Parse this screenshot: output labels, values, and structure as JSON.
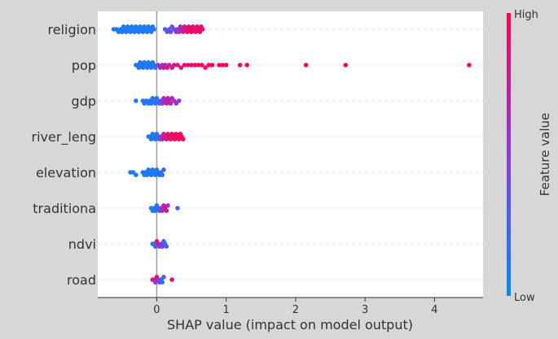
{
  "chart_data": {
    "type": "scatter",
    "subtype": "shap-beeswarm",
    "xlabel": "SHAP value (impact on model output)",
    "xlim": [
      -0.85,
      4.7
    ],
    "x_ticks": [
      0,
      1,
      2,
      3,
      4
    ],
    "zero_line": 0,
    "features": [
      "religion",
      "pop",
      "gdp",
      "river_leng",
      "elevation",
      "traditiona",
      "ndvi",
      "road"
    ],
    "colorbar": {
      "label": "Feature value",
      "high_label": "High",
      "low_label": "Low",
      "low_color": "#008afb",
      "high_color": "#ff0052"
    },
    "series": [
      {
        "name": "religion",
        "points": [
          [
            -0.62,
            0.15
          ],
          [
            -0.58,
            0.1
          ],
          [
            -0.55,
            0.12
          ],
          [
            -0.52,
            0.1
          ],
          [
            -0.5,
            0.12
          ],
          [
            -0.48,
            0.1
          ],
          [
            -0.46,
            0.15
          ],
          [
            -0.44,
            0.12
          ],
          [
            -0.42,
            0.1
          ],
          [
            -0.4,
            0.08
          ],
          [
            -0.38,
            0.1
          ],
          [
            -0.36,
            0.12
          ],
          [
            -0.34,
            0.1
          ],
          [
            -0.32,
            0.15
          ],
          [
            -0.3,
            0.1
          ],
          [
            -0.28,
            0.08
          ],
          [
            -0.26,
            0.1
          ],
          [
            -0.24,
            0.12
          ],
          [
            -0.22,
            0.1
          ],
          [
            -0.2,
            0.15
          ],
          [
            -0.18,
            0.12
          ],
          [
            -0.16,
            0.1
          ],
          [
            -0.14,
            0.08
          ],
          [
            -0.12,
            0.1
          ],
          [
            -0.1,
            0.12
          ],
          [
            -0.08,
            0.1
          ],
          [
            -0.06,
            0.15
          ],
          [
            -0.04,
            0.1
          ],
          [
            0.12,
            0.3
          ],
          [
            0.15,
            0.35
          ],
          [
            0.18,
            0.3
          ],
          [
            0.2,
            0.4
          ],
          [
            0.22,
            0.35
          ],
          [
            0.25,
            0.45
          ],
          [
            0.28,
            0.5
          ],
          [
            0.3,
            0.55
          ],
          [
            0.32,
            0.6
          ],
          [
            0.34,
            0.65
          ],
          [
            0.36,
            0.7
          ],
          [
            0.38,
            0.75
          ],
          [
            0.4,
            0.8
          ],
          [
            0.42,
            0.85
          ],
          [
            0.44,
            0.9
          ],
          [
            0.46,
            0.85
          ],
          [
            0.48,
            0.9
          ],
          [
            0.5,
            0.95
          ],
          [
            0.52,
            0.9
          ],
          [
            0.54,
            0.85
          ],
          [
            0.56,
            0.9
          ],
          [
            0.58,
            0.95
          ],
          [
            0.6,
            0.9
          ],
          [
            0.62,
            0.95
          ],
          [
            0.64,
            0.9
          ],
          [
            0.66,
            0.85
          ]
        ]
      },
      {
        "name": "pop",
        "points": [
          [
            -0.3,
            0.1
          ],
          [
            -0.28,
            0.12
          ],
          [
            -0.26,
            0.1
          ],
          [
            -0.24,
            0.1
          ],
          [
            -0.22,
            0.12
          ],
          [
            -0.2,
            0.1
          ],
          [
            -0.18,
            0.1
          ],
          [
            -0.16,
            0.12
          ],
          [
            -0.14,
            0.1
          ],
          [
            -0.12,
            0.1
          ],
          [
            -0.1,
            0.1
          ],
          [
            -0.08,
            0.12
          ],
          [
            -0.06,
            0.1
          ],
          [
            -0.04,
            0.1
          ],
          [
            -0.02,
            0.12
          ],
          [
            0.02,
            0.6
          ],
          [
            0.05,
            0.7
          ],
          [
            0.08,
            0.65
          ],
          [
            0.1,
            0.75
          ],
          [
            0.12,
            0.7
          ],
          [
            0.15,
            0.8
          ],
          [
            0.18,
            0.75
          ],
          [
            0.22,
            0.8
          ],
          [
            0.25,
            0.85
          ],
          [
            0.3,
            0.9
          ],
          [
            0.35,
            0.85
          ],
          [
            0.4,
            0.9
          ],
          [
            0.45,
            0.9
          ],
          [
            0.5,
            0.95
          ],
          [
            0.55,
            0.9
          ],
          [
            0.6,
            0.95
          ],
          [
            0.65,
            0.95
          ],
          [
            0.7,
            0.9
          ],
          [
            0.75,
            0.95
          ],
          [
            0.8,
            0.95
          ],
          [
            0.9,
            0.95
          ],
          [
            0.95,
            0.95
          ],
          [
            1.0,
            0.95
          ],
          [
            1.2,
            0.98
          ],
          [
            1.3,
            0.98
          ],
          [
            2.15,
            1.0
          ],
          [
            2.72,
            1.0
          ],
          [
            4.5,
            1.0
          ]
        ]
      },
      {
        "name": "gdp",
        "points": [
          [
            -0.3,
            0.1
          ],
          [
            -0.2,
            0.12
          ],
          [
            -0.18,
            0.1
          ],
          [
            -0.15,
            0.12
          ],
          [
            -0.12,
            0.1
          ],
          [
            -0.1,
            0.15
          ],
          [
            -0.08,
            0.12
          ],
          [
            -0.06,
            0.1
          ],
          [
            -0.04,
            0.15
          ],
          [
            -0.02,
            0.12
          ],
          [
            0.0,
            0.2
          ],
          [
            0.02,
            0.15
          ],
          [
            0.04,
            0.2
          ],
          [
            0.06,
            0.5
          ],
          [
            0.08,
            0.55
          ],
          [
            0.1,
            0.6
          ],
          [
            0.12,
            0.65
          ],
          [
            0.14,
            0.7
          ],
          [
            0.16,
            0.7
          ],
          [
            0.18,
            0.75
          ],
          [
            0.2,
            0.7
          ],
          [
            0.22,
            0.65
          ],
          [
            0.25,
            0.6
          ],
          [
            0.28,
            0.55
          ],
          [
            0.32,
            0.5
          ]
        ]
      },
      {
        "name": "river_leng",
        "points": [
          [
            -0.12,
            0.1
          ],
          [
            -0.1,
            0.1
          ],
          [
            -0.08,
            0.12
          ],
          [
            -0.06,
            0.1
          ],
          [
            -0.04,
            0.1
          ],
          [
            -0.02,
            0.12
          ],
          [
            0.0,
            0.15
          ],
          [
            0.02,
            0.2
          ],
          [
            0.04,
            0.25
          ],
          [
            0.06,
            0.6
          ],
          [
            0.08,
            0.7
          ],
          [
            0.1,
            0.75
          ],
          [
            0.12,
            0.8
          ],
          [
            0.14,
            0.85
          ],
          [
            0.16,
            0.85
          ],
          [
            0.18,
            0.9
          ],
          [
            0.2,
            0.9
          ],
          [
            0.22,
            0.9
          ],
          [
            0.24,
            0.95
          ],
          [
            0.26,
            0.95
          ],
          [
            0.28,
            0.95
          ],
          [
            0.3,
            0.95
          ],
          [
            0.32,
            0.95
          ],
          [
            0.34,
            0.95
          ],
          [
            0.36,
            0.95
          ],
          [
            0.38,
            0.95
          ]
        ]
      },
      {
        "name": "elevation",
        "points": [
          [
            -0.38,
            0.1
          ],
          [
            -0.34,
            0.1
          ],
          [
            -0.3,
            0.12
          ],
          [
            -0.2,
            0.1
          ],
          [
            -0.18,
            0.1
          ],
          [
            -0.16,
            0.12
          ],
          [
            -0.14,
            0.1
          ],
          [
            -0.12,
            0.1
          ],
          [
            -0.1,
            0.12
          ],
          [
            -0.08,
            0.1
          ],
          [
            -0.06,
            0.1
          ],
          [
            -0.04,
            0.12
          ],
          [
            -0.02,
            0.1
          ],
          [
            0.0,
            0.12
          ],
          [
            0.02,
            0.1
          ],
          [
            0.04,
            0.15
          ],
          [
            0.06,
            0.12
          ],
          [
            0.08,
            0.2
          ],
          [
            0.1,
            0.25
          ]
        ]
      },
      {
        "name": "traditiona",
        "points": [
          [
            -0.08,
            0.1
          ],
          [
            -0.06,
            0.12
          ],
          [
            -0.04,
            0.1
          ],
          [
            -0.02,
            0.1
          ],
          [
            0.0,
            0.15
          ],
          [
            0.02,
            0.2
          ],
          [
            0.04,
            0.3
          ],
          [
            0.06,
            0.5
          ],
          [
            0.08,
            0.6
          ],
          [
            0.1,
            0.7
          ],
          [
            0.12,
            0.75
          ],
          [
            0.14,
            0.8
          ],
          [
            0.16,
            0.6
          ],
          [
            0.3,
            0.25
          ]
        ]
      },
      {
        "name": "ndvi",
        "points": [
          [
            -0.06,
            0.1
          ],
          [
            -0.04,
            0.15
          ],
          [
            -0.02,
            0.2
          ],
          [
            0.0,
            0.8
          ],
          [
            0.02,
            0.85
          ],
          [
            0.04,
            0.6
          ],
          [
            0.06,
            0.4
          ],
          [
            0.08,
            0.5
          ],
          [
            0.1,
            0.3
          ],
          [
            0.12,
            0.2
          ],
          [
            0.14,
            0.25
          ]
        ]
      },
      {
        "name": "road",
        "points": [
          [
            -0.06,
            0.8
          ],
          [
            -0.04,
            0.85
          ],
          [
            -0.02,
            0.5
          ],
          [
            0.0,
            0.9
          ],
          [
            0.02,
            0.6
          ],
          [
            0.04,
            0.4
          ],
          [
            0.06,
            0.3
          ],
          [
            0.08,
            0.2
          ],
          [
            0.1,
            0.25
          ],
          [
            0.22,
            0.9
          ]
        ]
      }
    ]
  }
}
